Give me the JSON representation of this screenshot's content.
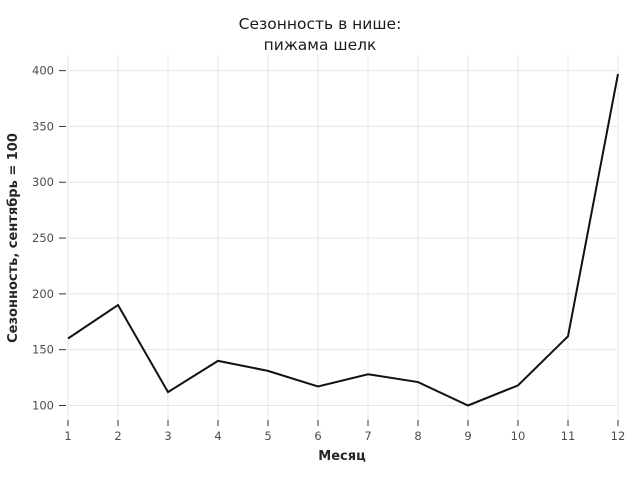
{
  "chart_data": {
    "type": "line",
    "title_line1": "Сезонность в нише:",
    "title_line2": "пижама шелк",
    "xlabel": "Месяц",
    "ylabel": "Сезонность, сентябрь = 100",
    "x": [
      1,
      2,
      3,
      4,
      5,
      6,
      7,
      8,
      9,
      10,
      11,
      12
    ],
    "series": [
      {
        "name": "Сезонность",
        "values": [
          160,
          190,
          112,
          140,
          131,
          117,
          128,
          121,
          100,
          118,
          162,
          397
        ]
      }
    ],
    "xticks": [
      "1",
      "2",
      "3",
      "4",
      "5",
      "6",
      "7",
      "8",
      "9",
      "10",
      "11",
      "12"
    ],
    "yticks": [
      100,
      150,
      200,
      250,
      300,
      350,
      400
    ],
    "xlim": [
      1,
      12
    ],
    "ylim": [
      87,
      414
    ],
    "grid": "both-major",
    "legend": "none",
    "colors": {
      "line": "#111111",
      "grid": "#e5e5e5",
      "tick": "#333333",
      "tick_label": "#4d4d4d",
      "axis_label": "#262626",
      "title": "#1a1a1a",
      "background": "#ffffff"
    }
  }
}
